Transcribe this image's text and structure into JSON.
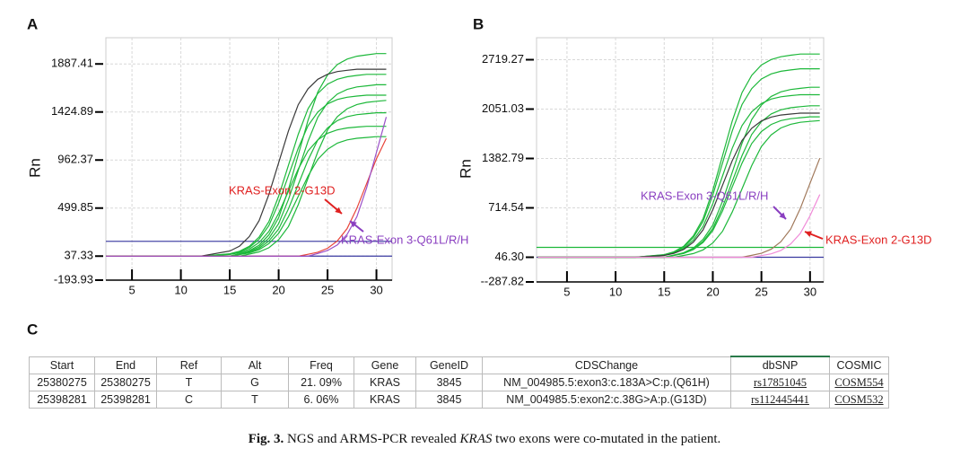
{
  "chart_data": [
    {
      "type": "line",
      "panel_label": "A",
      "y_label": "Rn",
      "x": [
        2,
        12,
        15,
        16,
        17,
        18,
        19,
        20,
        21,
        22,
        23,
        24,
        25,
        26,
        27,
        28,
        29,
        30,
        31
      ],
      "xlim": [
        2.33,
        31.6
      ],
      "xticks": [
        5,
        10,
        15,
        20,
        25,
        30
      ],
      "ylim": [
        -193.93,
        2140
      ],
      "yticks": [
        -193.93,
        37.33,
        499.85,
        962.37,
        1424.89,
        1887.41
      ],
      "grid": true,
      "series": [
        {
          "color": "#1db83a",
          "values": [
            37,
            37,
            37,
            62,
            90,
            142,
            242,
            408,
            681,
            1012,
            1344,
            1617,
            1782,
            1882,
            1934,
            1962,
            1975,
            1987,
            1987
          ]
        },
        {
          "color": "#1db83a",
          "values": [
            37,
            37,
            60,
            84,
            132,
            221,
            370,
            615,
            912,
            1210,
            1455,
            1603,
            1693,
            1740,
            1764,
            1777,
            1787,
            1787,
            1787
          ]
        },
        {
          "color": "#1db83a",
          "values": [
            37,
            37,
            37,
            58,
            82,
            126,
            210,
            351,
            582,
            862,
            1143,
            1374,
            1514,
            1598,
            1642,
            1666,
            1677,
            1687,
            1687
          ]
        },
        {
          "color": "#1db83a",
          "values": [
            37,
            37,
            57,
            79,
            121,
            200,
            332,
            549,
            812,
            1076,
            1293,
            1424,
            1503,
            1545,
            1567,
            1578,
            1587,
            1587,
            1587
          ]
        },
        {
          "color": "#1db83a",
          "values": [
            37,
            37,
            37,
            37,
            57,
            78,
            118,
            195,
            322,
            532,
            787,
            1042,
            1252,
            1380,
            1456,
            1497,
            1518,
            1528,
            1537
          ]
        },
        {
          "color": "#1db83a",
          "values": [
            37,
            37,
            37,
            55,
            74,
            112,
            182,
            299,
            492,
            727,
            962,
            1155,
            1272,
            1342,
            1380,
            1399,
            1409,
            1417,
            1417
          ]
        },
        {
          "color": "#1db83a",
          "values": [
            37,
            37,
            53,
            71,
            105,
            168,
            275,
            450,
            662,
            875,
            1050,
            1156,
            1220,
            1253,
            1271,
            1280,
            1287,
            1287,
            1287
          ]
        },
        {
          "color": "#1db83a",
          "values": [
            37,
            37,
            37,
            52,
            68,
            99,
            158,
            256,
            417,
            612,
            808,
            969,
            1066,
            1125,
            1156,
            1172,
            1180,
            1187,
            1187
          ]
        },
        {
          "color": "#3a3a3a",
          "values": [
            37,
            37,
            86,
            134,
            226,
            379,
            631,
            937,
            1243,
            1495,
            1648,
            1740,
            1788,
            1814,
            1826,
            1837,
            1837,
            1837,
            1837
          ]
        },
        {
          "color": "#e8443a",
          "values": [
            37,
            37,
            37,
            37,
            37,
            37,
            37,
            37,
            37,
            37,
            55,
            75,
            113,
            184,
            303,
            499,
            737,
            975,
            1171
          ]
        },
        {
          "color": "#9a4fc8",
          "values": [
            37,
            37,
            37,
            37,
            37,
            37,
            37,
            37,
            37,
            37,
            37,
            63,
            91,
            145,
            247,
            417,
            697,
            1037,
            1377
          ]
        }
      ],
      "thresholds": [
        {
          "value": 180,
          "color": "#4a4aa8"
        },
        {
          "value": 37,
          "color": "#3a3aa0"
        }
      ],
      "annotations": [
        {
          "text": "KRAS-Exon 2-G13D",
          "color": "#e02020"
        },
        {
          "text": "KRAS-Exon 3-Q61L/R/H",
          "color": "#8a3fc0"
        }
      ]
    },
    {
      "type": "line",
      "panel_label": "B",
      "y_label": "Rn",
      "x": [
        2,
        12,
        15,
        16,
        17,
        18,
        19,
        20,
        21,
        22,
        23,
        24,
        25,
        26,
        27,
        28,
        29,
        30,
        31
      ],
      "xlim": [
        1.87,
        31.4
      ],
      "xticks": [
        5,
        10,
        15,
        20,
        25,
        30
      ],
      "ylim": [
        -287.82,
        3017
      ],
      "yticks": [
        {
          "value": -287.82,
          "label": "--287.82"
        },
        {
          "value": 46.3,
          "label": "46.30"
        },
        714.54,
        1382.79,
        2051.03,
        2719.27
      ],
      "grid": true,
      "series": [
        {
          "color": "#1db83a",
          "values": [
            46,
            46,
            82,
            120,
            195,
            335,
            569,
            954,
            1421,
            1889,
            2274,
            2507,
            2648,
            2722,
            2760,
            2780,
            2796,
            2796,
            2796
          ]
        },
        {
          "color": "#1db83a",
          "values": [
            46,
            46,
            79,
            115,
            184,
            314,
            531,
            888,
            1321,
            1755,
            2112,
            2328,
            2458,
            2527,
            2563,
            2581,
            2596,
            2596,
            2596
          ]
        },
        {
          "color": "#1db83a",
          "values": [
            46,
            46,
            46,
            76,
            108,
            170,
            288,
            483,
            805,
            1196,
            1587,
            1909,
            2105,
            2222,
            2284,
            2316,
            2332,
            2346,
            2346
          ]
        },
        {
          "color": "#1db83a",
          "values": [
            46,
            46,
            75,
            105,
            165,
            277,
            464,
            772,
            1146,
            1520,
            1828,
            2015,
            2127,
            2187,
            2217,
            2233,
            2246,
            2246,
            2246
          ]
        },
        {
          "color": "#1db83a",
          "values": [
            46,
            46,
            46,
            73,
            101,
            157,
            261,
            436,
            723,
            1071,
            1420,
            1707,
            1881,
            1985,
            2041,
            2069,
            2084,
            2096,
            2096
          ]
        },
        {
          "color": "#1db83a",
          "values": [
            46,
            46,
            46,
            71,
            97,
            149,
            246,
            407,
            673,
            996,
            1319,
            1585,
            1747,
            1843,
            1895,
            1921,
            1935,
            1946,
            1946
          ]
        },
        {
          "color": "#1db83a",
          "values": [
            46,
            46,
            46,
            46,
            70,
            96,
            146,
            240,
            398,
            657,
            971,
            1286,
            1545,
            1702,
            1796,
            1846,
            1872,
            1885,
            1896
          ]
        },
        {
          "color": "#3a3a3a",
          "values": [
            46,
            46,
            71,
            99,
            151,
            251,
            417,
            690,
            1021,
            1353,
            1626,
            1791,
            1891,
            1943,
            1971,
            1984,
            1996,
            1996,
            1996
          ]
        },
        {
          "color": "#a0785a",
          "values": [
            46,
            46,
            46,
            46,
            46,
            46,
            46,
            46,
            46,
            46,
            46,
            72,
            100,
            154,
            256,
            426,
            706,
            1046,
            1386
          ]
        },
        {
          "color": "#f08ad8",
          "values": [
            46,
            46,
            46,
            46,
            46,
            46,
            46,
            46,
            46,
            46,
            46,
            46,
            68,
            92,
            138,
            225,
            369,
            607,
            896
          ]
        }
      ],
      "thresholds": [
        {
          "value": 180,
          "color": "#1db83a"
        },
        {
          "value": 46,
          "color": "#3a3aa0"
        }
      ],
      "annotations": [
        {
          "text": "KRAS-Exon 3-Q61L/R/H",
          "color": "#8a3fc0"
        },
        {
          "text": "KRAS-Exon 2-G13D",
          "color": "#e02020"
        }
      ]
    }
  ],
  "table": {
    "panel_label": "C",
    "columns": [
      "Start",
      "End",
      "Ref",
      "Alt",
      "Freq",
      "Gene",
      "GeneID",
      "CDSChange",
      "dbSNP",
      "COSMIC"
    ],
    "rows": [
      [
        "25380275",
        "25380275",
        "T",
        "G",
        "21. 09%",
        "KRAS",
        "3845",
        "NM_004985.5:exon3:c.183A>C:p.(Q61H)",
        "rs17851045",
        "COSM554"
      ],
      [
        "25398281",
        "25398281",
        "C",
        "T",
        "6. 06%",
        "KRAS",
        "3845",
        "NM_004985.5:exon2:c.38G>A:p.(G13D)",
        "rs112445441",
        "COSM532"
      ]
    ]
  },
  "caption": {
    "label": "Fig. 3.",
    "text_before": "NGS and ARMS-PCR revealed ",
    "emphasis": "KRAS",
    "text_after": " two exons were co-mutated in the patient."
  }
}
